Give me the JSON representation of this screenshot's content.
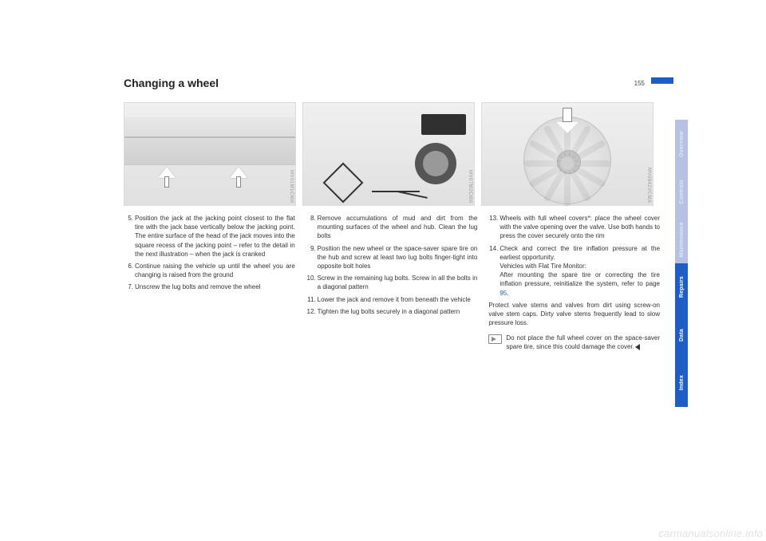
{
  "page_number": "155",
  "heading": "Changing a wheel",
  "figures": {
    "fig1_id": "MV01M1CMA",
    "fig2_id": "MV07M2CMA",
    "fig3_id": "MV0942VCMA"
  },
  "col1": [
    {
      "n": "5.",
      "t": "Position the jack at the jacking point closest to the flat tire with the jack base vertically below the jacking point. The entire surface of the head of the jack moves into the square recess of the jacking point – refer to the detail in the next illustration – when the jack is cranked"
    },
    {
      "n": "6.",
      "t": "Continue raising the vehicle up until the wheel you are changing is raised from the ground"
    },
    {
      "n": "7.",
      "t": "Unscrew the lug bolts and remove the wheel"
    }
  ],
  "col2": [
    {
      "n": "8.",
      "t": "Remove accumulations of mud and dirt from the mounting surfaces of the wheel and hub. Clean the lug bolts"
    },
    {
      "n": "9.",
      "t": "Position the new wheel or the space-saver spare tire on the hub and screw at least two lug bolts finger-tight into opposite bolt holes"
    },
    {
      "n": "10.",
      "t": "Screw in the remaining lug bolts. Screw in all the bolts in a diagonal pattern"
    },
    {
      "n": "11.",
      "t": "Lower the jack and remove it from beneath the vehicle"
    },
    {
      "n": "12.",
      "t": "Tighten the lug bolts securely in a diagonal pattern"
    }
  ],
  "col3_steps": [
    {
      "n": "13.",
      "t": "Wheels with full wheel covers*: place the wheel cover with the valve opening over the valve. Use both hands to press the cover securely onto the rim"
    },
    {
      "n": "14.",
      "t_pre": "Check and correct the tire inflation pressure at the earliest opportunity.\nVehicles with Flat Tire Monitor:\nAfter mounting the spare tire or correcting the tire inflation pressure, reinitialize the system, refer to page ",
      "link": "95",
      "t_post": "."
    }
  ],
  "col3_para": "Protect valve stems and valves from dirt using screw-on valve stem caps. Dirty valve stems frequently lead to slow pressure loss.",
  "col3_notice": "Do not place the full wheel cover on the space-saver spare tire, since this could damage the cover.",
  "tabs": [
    {
      "label": "Overview",
      "active": false
    },
    {
      "label": "Controls",
      "active": false
    },
    {
      "label": "Maintenance",
      "active": false
    },
    {
      "label": "Repairs",
      "active": true
    },
    {
      "label": "Data",
      "active": true
    },
    {
      "label": "Index",
      "active": true
    }
  ],
  "watermark": "carmanualsonline.info"
}
